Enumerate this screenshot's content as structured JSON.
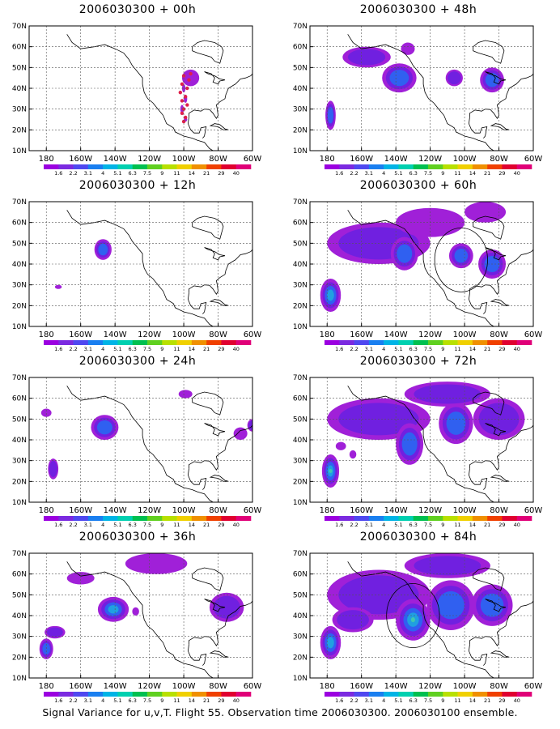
{
  "panels": [
    {
      "title": "2006030300 + 00h",
      "blobs": [
        [
          96,
          45,
          5,
          4,
          1
        ],
        [
          100,
          40,
          1,
          2,
          1
        ],
        [
          99,
          35,
          1,
          2,
          1
        ],
        [
          101,
          30,
          1,
          2,
          1
        ],
        [
          99,
          25,
          1,
          1,
          1
        ]
      ],
      "dots": [
        [
          96,
          47
        ],
        [
          100,
          46
        ],
        [
          97,
          44
        ],
        [
          101,
          42
        ],
        [
          98,
          40
        ],
        [
          102,
          38
        ],
        [
          99,
          36
        ],
        [
          101,
          34
        ],
        [
          98,
          32
        ],
        [
          100,
          30
        ],
        [
          101,
          28
        ],
        [
          99,
          26
        ],
        [
          100,
          24
        ]
      ],
      "circles": []
    },
    {
      "title": "2006030300 + 48h",
      "blobs": [
        [
          157,
          55,
          14,
          5,
          2
        ],
        [
          138,
          45,
          10,
          7,
          3
        ],
        [
          178,
          27,
          3,
          7,
          3
        ],
        [
          106,
          45,
          5,
          4,
          2
        ],
        [
          84,
          44,
          7,
          6,
          3
        ],
        [
          133,
          59,
          4,
          3,
          1
        ]
      ],
      "dots": [],
      "circles": []
    },
    {
      "title": "2006030300 + 12h",
      "blobs": [
        [
          147,
          47,
          5,
          5,
          3
        ],
        [
          173,
          29,
          2,
          1,
          1
        ]
      ],
      "dots": [],
      "circles": []
    },
    {
      "title": "2006030300 + 60h",
      "blobs": [
        [
          150,
          50,
          30,
          10,
          2
        ],
        [
          135,
          45,
          8,
          8,
          3
        ],
        [
          178,
          25,
          6,
          8,
          4
        ],
        [
          102,
          44,
          7,
          6,
          3
        ],
        [
          84,
          40,
          8,
          7,
          3
        ],
        [
          120,
          60,
          20,
          7,
          1
        ],
        [
          88,
          65,
          12,
          5,
          1
        ]
      ],
      "dots": [],
      "circles": [
        [
          102,
          42,
          7,
          7
        ]
      ]
    },
    {
      "title": "2006030300 + 24h",
      "blobs": [
        [
          146,
          46,
          8,
          6,
          3
        ],
        [
          176,
          26,
          3,
          5,
          2
        ],
        [
          180,
          53,
          3,
          2,
          1
        ],
        [
          67,
          43,
          4,
          3,
          1
        ],
        [
          99,
          62,
          4,
          2,
          1
        ],
        [
          60,
          47,
          3,
          3,
          2
        ]
      ],
      "dots": [],
      "circles": []
    },
    {
      "title": "2006030300 + 72h",
      "blobs": [
        [
          150,
          50,
          30,
          10,
          2
        ],
        [
          132,
          38,
          8,
          10,
          3
        ],
        [
          178,
          25,
          5,
          8,
          5
        ],
        [
          105,
          48,
          10,
          10,
          3
        ],
        [
          80,
          50,
          15,
          10,
          2
        ],
        [
          110,
          62,
          25,
          6,
          2
        ],
        [
          172,
          37,
          3,
          2,
          1
        ],
        [
          165,
          33,
          2,
          2,
          1
        ]
      ],
      "dots": [],
      "circles": []
    },
    {
      "title": "2006030300 + 36h",
      "blobs": [
        [
          141,
          43,
          9,
          6,
          4
        ],
        [
          180,
          24,
          4,
          5,
          3
        ],
        [
          175,
          32,
          6,
          3,
          2
        ],
        [
          116,
          65,
          18,
          5,
          1
        ],
        [
          75,
          44,
          10,
          7,
          2
        ],
        [
          160,
          58,
          8,
          3,
          1
        ],
        [
          128,
          42,
          2,
          2,
          1
        ]
      ],
      "dots": [],
      "circles": []
    },
    {
      "title": "2006030300 + 84h",
      "blobs": [
        [
          150,
          50,
          30,
          12,
          2
        ],
        [
          178,
          27,
          6,
          8,
          4
        ],
        [
          130,
          38,
          10,
          10,
          5
        ],
        [
          108,
          45,
          14,
          12,
          3
        ],
        [
          84,
          45,
          12,
          10,
          3
        ],
        [
          110,
          64,
          25,
          6,
          2
        ],
        [
          165,
          38,
          12,
          6,
          2
        ]
      ],
      "dots": [],
      "circles": [
        [
          130,
          40,
          7,
          7
        ]
      ]
    }
  ],
  "axes": {
    "yticks": [
      "10N",
      "20N",
      "30N",
      "40N",
      "50N",
      "60N",
      "70N"
    ],
    "xticks": [
      "180",
      "160W",
      "140W",
      "120W",
      "100W",
      "80W",
      "60W"
    ]
  },
  "colorbar": {
    "labels": [
      "1.6",
      "2.2",
      "3.1",
      "4",
      "5.1",
      "6.3",
      "7.5",
      "9",
      "11",
      "14",
      "21",
      "29",
      "40"
    ],
    "colors": [
      "#9b00e0",
      "#7b2ae0",
      "#4f48f0",
      "#1a7ff0",
      "#00b4e6",
      "#00d0b0",
      "#00c050",
      "#60d020",
      "#b8e000",
      "#f0d000",
      "#f09000",
      "#f04000",
      "#e00030",
      "#e00078"
    ]
  },
  "footer": "Signal Variance for u,v,T. Flight 55. Observation time 2006030300. 2006030100 ensemble."
}
